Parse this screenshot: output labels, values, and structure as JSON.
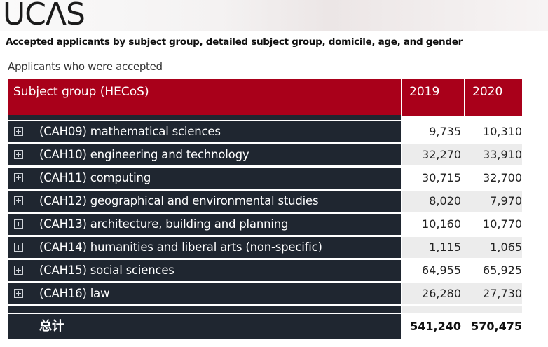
{
  "brand": {
    "logo": "UCΛS"
  },
  "page": {
    "title": "Accepted applicants by subject group, detailed subject group, domicile, age, and gender",
    "subtitle": "Applicants who were accepted"
  },
  "table": {
    "headers": {
      "subject": "Subject group (HECoS)",
      "y2019": "2019",
      "y2020": "2020"
    },
    "rows": [
      {
        "label": "(CAH09) mathematical sciences",
        "y2019": "9,735",
        "y2020": "10,310"
      },
      {
        "label": "(CAH10) engineering and technology",
        "y2019": "32,270",
        "y2020": "33,910"
      },
      {
        "label": "(CAH11) computing",
        "y2019": "30,715",
        "y2020": "32,700"
      },
      {
        "label": "(CAH12) geographical and environmental studies",
        "y2019": "8,020",
        "y2020": "7,970"
      },
      {
        "label": "(CAH13) architecture, building and planning",
        "y2019": "10,160",
        "y2020": "10,770"
      },
      {
        "label": "(CAH14) humanities and liberal arts (non-specific)",
        "y2019": "1,115",
        "y2020": "1,065"
      },
      {
        "label": "(CAH15) social sciences",
        "y2019": "64,955",
        "y2020": "65,925"
      },
      {
        "label": "(CAH16) law",
        "y2019": "26,280",
        "y2020": "27,730"
      }
    ],
    "total": {
      "label": "总计",
      "y2019": "541,240",
      "y2020": "570,475"
    },
    "expand_icon": "plus-square-icon"
  }
}
